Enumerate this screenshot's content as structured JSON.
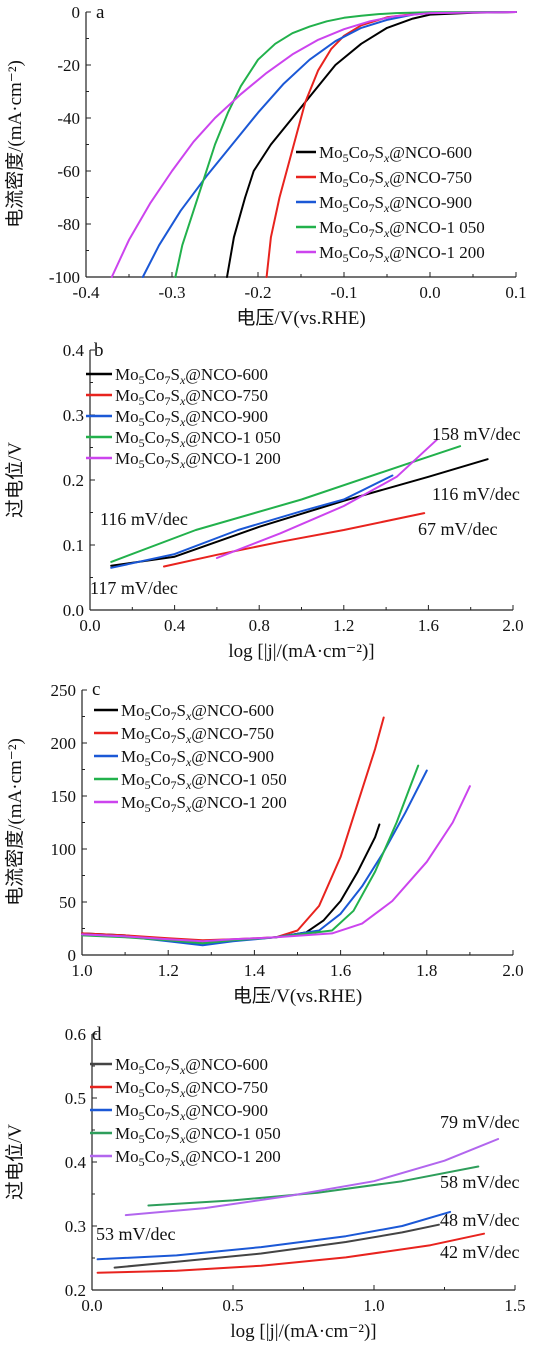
{
  "chart_data": [
    {
      "panel": "a",
      "type": "line",
      "xlabel": "电压/V(vs.RHE)",
      "ylabel": "电流密度/(mA·cm⁻²)",
      "xlim": [
        -0.4,
        0.1
      ],
      "ylim": [
        -100,
        0
      ],
      "xticks": [
        "-0.4",
        "-0.3",
        "-0.2",
        "-0.1",
        "0.0",
        "0.1"
      ],
      "yticks": [
        "-100",
        "-80",
        "-60",
        "-40",
        "-20",
        "0"
      ],
      "grid": false,
      "legend_position": "right",
      "series": [
        {
          "name": "Mo5Co7Sx@NCO-600",
          "color": "#000000",
          "x": [
            -0.236,
            -0.228,
            -0.215,
            -0.205,
            -0.185,
            -0.16,
            -0.135,
            -0.11,
            -0.08,
            -0.05,
            -0.02,
            0.0,
            0.05,
            0.1
          ],
          "y": [
            -100,
            -85,
            -70,
            -60,
            -50,
            -40,
            -30,
            -20,
            -12,
            -6,
            -2.5,
            -1,
            -0.3,
            0
          ]
        },
        {
          "name": "Mo5Co7Sx@NCO-750",
          "color": "#e8231e",
          "x": [
            -0.19,
            -0.185,
            -0.175,
            -0.165,
            -0.155,
            -0.145,
            -0.13,
            -0.115,
            -0.1,
            -0.08,
            -0.05,
            -0.02,
            0.0,
            0.1
          ],
          "y": [
            -100,
            -85,
            -70,
            -58,
            -46,
            -34,
            -22,
            -14,
            -9,
            -5,
            -2,
            -0.8,
            -0.3,
            0
          ]
        },
        {
          "name": "Mo5Co7Sx@NCO-900",
          "color": "#1b58d6",
          "x": [
            -0.334,
            -0.315,
            -0.29,
            -0.26,
            -0.23,
            -0.2,
            -0.17,
            -0.14,
            -0.11,
            -0.08,
            -0.05,
            -0.02,
            0.0,
            0.1
          ],
          "y": [
            -100,
            -88,
            -75,
            -62,
            -50,
            -38,
            -27,
            -18,
            -11,
            -6,
            -3,
            -1,
            -0.3,
            0
          ]
        },
        {
          "name": "Mo5Co7Sx@NCO-1 050",
          "color": "#22b14c",
          "x": [
            -0.296,
            -0.288,
            -0.275,
            -0.262,
            -0.25,
            -0.235,
            -0.22,
            -0.2,
            -0.18,
            -0.16,
            -0.14,
            -0.12,
            -0.1,
            -0.08,
            -0.06,
            -0.04,
            0.0,
            0.1
          ],
          "y": [
            -100,
            -88,
            -75,
            -62,
            -50,
            -38,
            -28,
            -18,
            -12,
            -8,
            -5.5,
            -3.5,
            -2.2,
            -1.4,
            -0.8,
            -0.4,
            -0.1,
            0
          ]
        },
        {
          "name": "Mo5Co7Sx@NCO-1 200",
          "color": "#cc44ee",
          "x": [
            -0.37,
            -0.35,
            -0.325,
            -0.3,
            -0.275,
            -0.25,
            -0.22,
            -0.19,
            -0.16,
            -0.13,
            -0.1,
            -0.07,
            -0.04,
            0.0,
            0.1
          ],
          "y": [
            -100,
            -86,
            -72,
            -60,
            -49,
            -40,
            -31,
            -23,
            -16,
            -10.5,
            -6.5,
            -3.5,
            -1.6,
            -0.4,
            0
          ]
        }
      ]
    },
    {
      "panel": "b",
      "type": "line",
      "xlabel": "log [|j|/(mA·cm⁻²)]",
      "ylabel": "过电位/V",
      "xlim": [
        0.0,
        2.0
      ],
      "ylim": [
        0.0,
        0.4
      ],
      "xticks": [
        "0.0",
        "0.4",
        "0.8",
        "1.2",
        "1.6",
        "2.0"
      ],
      "yticks": [
        "0.0",
        "0.1",
        "0.2",
        "0.3",
        "0.4"
      ],
      "grid": false,
      "legend_position": "top-left",
      "series": [
        {
          "name": "Mo5Co7Sx@NCO-600",
          "color": "#000000",
          "x": [
            0.1,
            0.4,
            0.8,
            1.2,
            1.6,
            1.88
          ],
          "y": [
            0.068,
            0.082,
            0.128,
            0.168,
            0.205,
            0.232
          ]
        },
        {
          "name": "Mo5Co7Sx@NCO-750",
          "color": "#e8231e",
          "x": [
            0.35,
            0.6,
            0.9,
            1.2,
            1.58
          ],
          "y": [
            0.067,
            0.085,
            0.105,
            0.123,
            0.149
          ]
        },
        {
          "name": "Mo5Co7Sx@NCO-900",
          "color": "#1b58d6",
          "x": [
            0.1,
            0.4,
            0.7,
            1.0,
            1.2,
            1.43
          ],
          "y": [
            0.065,
            0.086,
            0.123,
            0.152,
            0.17,
            0.207
          ]
        },
        {
          "name": "Mo5Co7Sx@NCO-1 050",
          "color": "#22b14c",
          "x": [
            0.1,
            0.5,
            1.0,
            1.5,
            1.75
          ],
          "y": [
            0.074,
            0.123,
            0.17,
            0.225,
            0.252
          ]
        },
        {
          "name": "Mo5Co7Sx@NCO-1 200",
          "color": "#cc44ee",
          "x": [
            0.6,
            0.9,
            1.2,
            1.45,
            1.64
          ],
          "y": [
            0.08,
            0.118,
            0.16,
            0.205,
            0.262
          ]
        }
      ],
      "annotations": [
        "158 mV/dec",
        "116 mV/dec",
        "116 mV/dec",
        "67 mV/dec",
        "117 mV/dec"
      ]
    },
    {
      "panel": "c",
      "type": "line",
      "xlabel": "电压/V(vs.RHE)",
      "ylabel": "电流密度/(mA·cm⁻²)",
      "xlim": [
        1.0,
        2.0
      ],
      "ylim": [
        -20,
        250
      ],
      "xticks": [
        "1.0",
        "1.2",
        "1.4",
        "1.6",
        "1.8",
        "2.0"
      ],
      "yticks": [
        "0",
        "50",
        "100",
        "150",
        "200",
        "250"
      ],
      "grid": false,
      "legend_position": "top-left",
      "series": [
        {
          "name": "Mo5Co7Sx@NCO-600",
          "color": "#000000",
          "x": [
            1.0,
            1.1,
            1.2,
            1.28,
            1.35,
            1.45,
            1.52,
            1.56,
            1.6,
            1.64,
            1.68,
            1.69
          ],
          "y": [
            2,
            0,
            -5,
            -8,
            -5,
            -2,
            3,
            15,
            35,
            65,
            100,
            113
          ]
        },
        {
          "name": "Mo5Co7Sx@NCO-750",
          "color": "#e8231e",
          "x": [
            1.0,
            1.1,
            1.2,
            1.28,
            1.35,
            1.45,
            1.5,
            1.55,
            1.6,
            1.64,
            1.68,
            1.7
          ],
          "y": [
            2,
            0,
            -3,
            -5,
            -4,
            -2,
            5,
            30,
            80,
            135,
            190,
            222
          ]
        },
        {
          "name": "Mo5Co7Sx@NCO-900",
          "color": "#1b58d6",
          "x": [
            1.0,
            1.1,
            1.2,
            1.28,
            1.35,
            1.45,
            1.55,
            1.6,
            1.65,
            1.7,
            1.75,
            1.8
          ],
          "y": [
            1,
            -1,
            -6,
            -10,
            -6,
            -2,
            5,
            22,
            50,
            85,
            125,
            168
          ]
        },
        {
          "name": "Mo5Co7Sx@NCO-1 050",
          "color": "#22b14c",
          "x": [
            1.0,
            1.1,
            1.2,
            1.28,
            1.35,
            1.45,
            1.58,
            1.63,
            1.68,
            1.73,
            1.76,
            1.78
          ],
          "y": [
            0,
            -2,
            -5,
            -8,
            -5,
            -2,
            5,
            25,
            65,
            115,
            150,
            173
          ]
        },
        {
          "name": "Mo5Co7Sx@NCO-1 200",
          "color": "#cc44ee",
          "x": [
            1.0,
            1.1,
            1.2,
            1.28,
            1.35,
            1.45,
            1.58,
            1.65,
            1.72,
            1.8,
            1.86,
            1.9
          ],
          "y": [
            1,
            -1,
            -4,
            -6,
            -4,
            -2,
            2,
            12,
            35,
            75,
            115,
            152
          ]
        }
      ]
    },
    {
      "panel": "d",
      "type": "line",
      "xlabel": "log [|j|/(mA·cm⁻²)]",
      "ylabel": "过电位/V",
      "xlim": [
        0.0,
        1.5
      ],
      "ylim": [
        0.2,
        0.6
      ],
      "xticks": [
        "0.0",
        "0.5",
        "1.0",
        "1.5"
      ],
      "yticks": [
        "0.2",
        "0.3",
        "0.4",
        "0.5",
        "0.6"
      ],
      "grid": false,
      "legend_position": "top-left",
      "series": [
        {
          "name": "Mo5Co7Sx@NCO-600",
          "color": "#444444",
          "x": [
            0.08,
            0.3,
            0.6,
            0.9,
            1.1,
            1.23
          ],
          "y": [
            0.235,
            0.244,
            0.257,
            0.275,
            0.29,
            0.302
          ]
        },
        {
          "name": "Mo5Co7Sx@NCO-750",
          "color": "#e8231e",
          "x": [
            0.02,
            0.3,
            0.6,
            0.9,
            1.2,
            1.39
          ],
          "y": [
            0.227,
            0.23,
            0.238,
            0.251,
            0.27,
            0.288
          ]
        },
        {
          "name": "Mo5Co7Sx@NCO-900",
          "color": "#1b58d6",
          "x": [
            0.02,
            0.3,
            0.6,
            0.9,
            1.1,
            1.27
          ],
          "y": [
            0.248,
            0.254,
            0.267,
            0.284,
            0.3,
            0.322
          ]
        },
        {
          "name": "Mo5Co7Sx@NCO-1 050",
          "color": "#2e9e5b",
          "x": [
            0.2,
            0.5,
            0.8,
            1.1,
            1.37
          ],
          "y": [
            0.332,
            0.34,
            0.352,
            0.37,
            0.393
          ]
        },
        {
          "name": "Mo5Co7Sx@NCO-1 200",
          "color": "#b266ee",
          "x": [
            0.12,
            0.4,
            0.7,
            1.0,
            1.25,
            1.44
          ],
          "y": [
            0.317,
            0.328,
            0.347,
            0.37,
            0.402,
            0.436
          ]
        }
      ],
      "annotations": [
        "79 mV/dec",
        "58 mV/dec",
        "48 mV/dec",
        "42 mV/dec",
        "53 mV/dec"
      ]
    }
  ]
}
